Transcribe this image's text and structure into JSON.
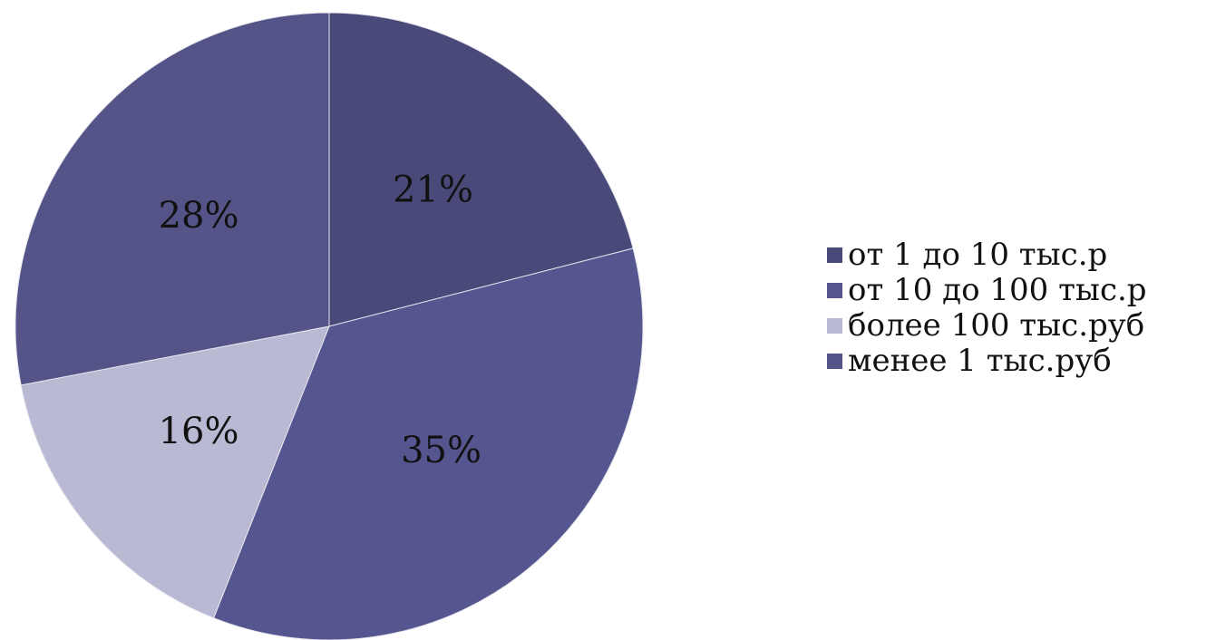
{
  "chart_data": {
    "type": "pie",
    "title": "",
    "legend_position": "right",
    "slices": [
      {
        "label": "от 1 до 10 тыс.р",
        "value": 21,
        "value_label": "21%",
        "color": "#4a4a7a"
      },
      {
        "label": "от 10 до 100 тыс.р",
        "value": 35,
        "value_label": "35%",
        "color": "#555590"
      },
      {
        "label": "более 100 тыс.руб",
        "value": 16,
        "value_label": "16%",
        "color": "#b9b9d3"
      },
      {
        "label": "менее 1 тыс.руб",
        "value": 28,
        "value_label": "28%",
        "color": "#545488"
      }
    ]
  }
}
